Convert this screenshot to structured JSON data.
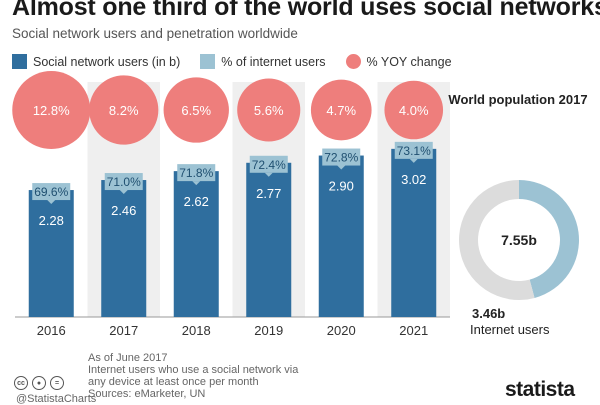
{
  "header": {
    "title": "Almost one third of the world uses social networks",
    "subtitle": "Social network users and penetration worldwide"
  },
  "legend": {
    "items": [
      {
        "label": "Social network users (in b)",
        "color": "#2f6e9e",
        "shape": "square"
      },
      {
        "label": "% of internet users",
        "color": "#9cc2d3",
        "shape": "square"
      },
      {
        "label": "% YOY change",
        "color": "#ee7e7c",
        "shape": "circle"
      }
    ]
  },
  "chart_data": [
    {
      "type": "bar",
      "categories": [
        "2016",
        "2017",
        "2018",
        "2019",
        "2020",
        "2021"
      ],
      "series": [
        {
          "name": "Social network users (in b)",
          "values": [
            2.28,
            2.46,
            2.62,
            2.77,
            2.9,
            3.02
          ],
          "labels": [
            "2.28",
            "2.46",
            "2.62",
            "2.77",
            "2.90",
            "3.02"
          ]
        },
        {
          "name": "% of internet users",
          "values": [
            69.6,
            71.0,
            71.8,
            72.4,
            72.8,
            73.1
          ],
          "labels": [
            "69.6%",
            "71.0%",
            "71.8%",
            "72.4%",
            "72.8%",
            "73.1%"
          ]
        },
        {
          "name": "% YOY change",
          "values": [
            12.8,
            8.2,
            6.5,
            5.6,
            4.7,
            4.0
          ],
          "labels": [
            "12.8%",
            "8.2%",
            "6.5%",
            "5.6%",
            "4.7%",
            "4.0%"
          ]
        }
      ],
      "ylim": [
        0,
        3.7
      ],
      "grid": false,
      "legend_position": "top-left",
      "colors": {
        "bar": "#2f6e9e",
        "label_box": "#9cc2d3",
        "bubble": "#ee7e7c",
        "band": "#efefef"
      }
    },
    {
      "type": "pie",
      "title": "World population 2017",
      "center_label": "7.55b",
      "total": 7.55,
      "slices": [
        {
          "name": "Internet users",
          "value": 3.46,
          "label": "3.46b",
          "color": "#9cc2d3"
        },
        {
          "name": "",
          "value": 4.09,
          "color": "#dcdcdc"
        }
      ]
    }
  ],
  "footer": {
    "license_icons": [
      "cc-icon",
      "by-icon",
      "equals-icon"
    ],
    "handle": "@StatistaCharts",
    "note_lines": [
      "As of June 2017",
      "Internet users who use a social network via",
      "any device at least once per month",
      "Sources: eMarketer, UN"
    ],
    "brand": "statista"
  }
}
